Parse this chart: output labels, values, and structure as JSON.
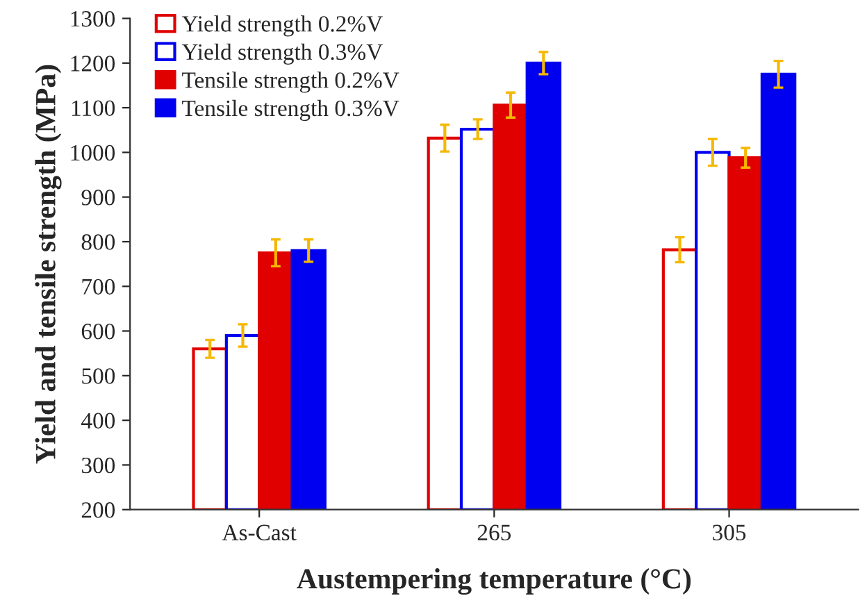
{
  "chart_data": {
    "type": "bar",
    "xlabel": "Austempering temperature (°C)",
    "ylabel": "Yield and tensile strength (MPa)",
    "categories": [
      "As-Cast",
      "265",
      "305"
    ],
    "series": [
      {
        "name": "Yield strength 0.2%V",
        "color": "#e00000",
        "values": [
          560,
          1032,
          782
        ],
        "errors": [
          20,
          30,
          28
        ]
      },
      {
        "name": "Yield strength 0.3%V",
        "color": "#0000f0",
        "values": [
          590,
          1052,
          1000
        ],
        "errors": [
          25,
          22,
          30
        ]
      },
      {
        "name": "Tensile strength 0.2%V",
        "color": "#e00000",
        "values": [
          775,
          1106,
          988
        ],
        "errors": [
          30,
          28,
          22
        ]
      },
      {
        "name": "Tensile strength 0.3%V",
        "color": "#0000f0",
        "values": [
          780,
          1200,
          1175
        ],
        "errors": [
          25,
          25,
          30
        ]
      }
    ],
    "ylim": [
      200,
      1300
    ],
    "yticks": [
      200,
      300,
      400,
      500,
      600,
      700,
      800,
      900,
      1000,
      1100,
      1200,
      1300
    ],
    "grid": false,
    "legend": "top left"
  }
}
